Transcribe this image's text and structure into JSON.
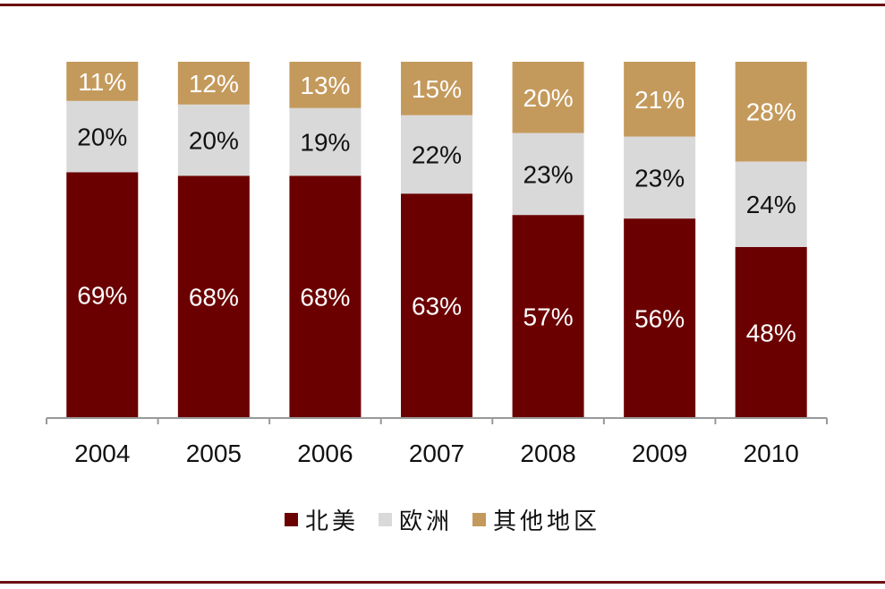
{
  "chart_data": {
    "type": "bar",
    "stacked": true,
    "categories": [
      "2004",
      "2005",
      "2006",
      "2007",
      "2008",
      "2009",
      "2010"
    ],
    "series": [
      {
        "name": "北美",
        "color": "#6b0000",
        "values": [
          69,
          68,
          68,
          63,
          57,
          56,
          48
        ],
        "labels": [
          "69%",
          "68%",
          "68%",
          "63%",
          "57%",
          "56%",
          "48%"
        ]
      },
      {
        "name": "欧洲",
        "color": "#d9d9d9",
        "values": [
          20,
          20,
          19,
          22,
          23,
          23,
          24
        ],
        "labels": [
          "20%",
          "20%",
          "19%",
          "22%",
          "23%",
          "23%",
          "24%"
        ]
      },
      {
        "name": "其他地区",
        "color": "#c49a5c",
        "values": [
          11,
          12,
          13,
          15,
          20,
          21,
          28
        ],
        "labels": [
          "11%",
          "12%",
          "13%",
          "15%",
          "20%",
          "21%",
          "28%"
        ]
      }
    ],
    "title": "",
    "xlabel": "",
    "ylabel": "",
    "ylim": [
      0,
      100
    ],
    "grid": false,
    "legend_position": "bottom"
  },
  "colors": {
    "rule": "#6b0f12",
    "axis": "#999999"
  }
}
